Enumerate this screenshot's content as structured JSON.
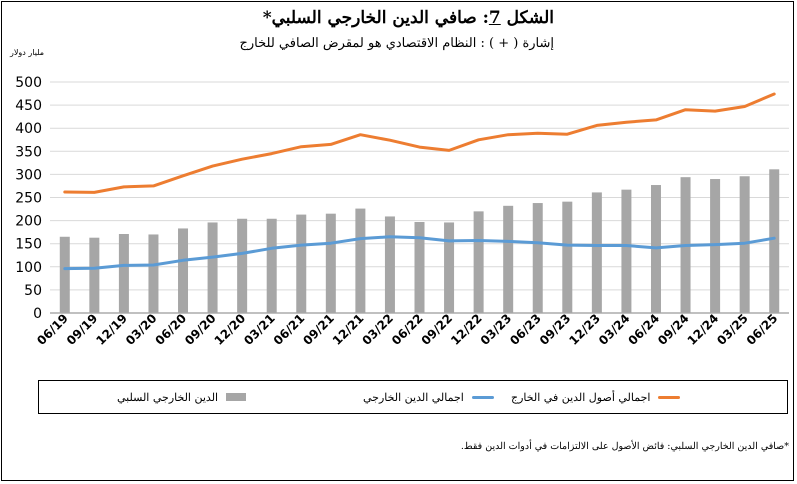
{
  "chart_data": {
    "type": "bar",
    "title_prefix": "الشكل",
    "title_number": "7",
    "title_text": ": صافي الدين الخارجي السلبي*",
    "subtitle": "إشارة ( + ) : النظام الاقتصادي هو لمقرض الصافي للخارج",
    "ylabel": "مليار دولار",
    "ylim": [
      0,
      500
    ],
    "ytick_step": 50,
    "grid": true,
    "legend_position": "bottom",
    "categories": [
      "06/19",
      "09/19",
      "12/19",
      "03/20",
      "06/20",
      "09/20",
      "12/20",
      "03/21",
      "06/21",
      "09/21",
      "12/21",
      "03/22",
      "06/22",
      "09/22",
      "12/22",
      "03/23",
      "06/23",
      "09/23",
      "12/23",
      "03/24",
      "06/24",
      "09/24",
      "12/24",
      "03/25",
      "06/25"
    ],
    "series": [
      {
        "name": "الدين الخارجي السلبي",
        "kind": "bar",
        "color": "#a6a6a6",
        "values": [
          165,
          163,
          171,
          170,
          183,
          196,
          204,
          204,
          213,
          215,
          226,
          209,
          197,
          196,
          220,
          232,
          238,
          241,
          261,
          267,
          277,
          294,
          290,
          296,
          311
        ]
      },
      {
        "name": "اجمالي الدين الخارجي",
        "kind": "line",
        "color": "#5b9bd5",
        "values": [
          96,
          97,
          103,
          104,
          114,
          121,
          129,
          140,
          147,
          151,
          161,
          165,
          163,
          156,
          157,
          155,
          152,
          147,
          146,
          146,
          141,
          146,
          148,
          151,
          162
        ]
      },
      {
        "name": "اجمالي أصول الدين في الخارج",
        "kind": "line",
        "color": "#ed7d31",
        "values": [
          262,
          261,
          273,
          275,
          297,
          318,
          333,
          345,
          360,
          365,
          386,
          374,
          359,
          352,
          375,
          386,
          389,
          387,
          406,
          413,
          418,
          440,
          437,
          447,
          474
        ]
      }
    ]
  },
  "legend": {
    "bar_label": "الدين الخارجي السلبي",
    "blue_label": "اجمالي الدين الخارجي",
    "orange_label": "اجمالي أصول الدين في الخارج"
  },
  "footnote": "*صافي الدين الخارجي السلبي: فائض الأصول على الالتزامات في أدوات الدين فقط."
}
